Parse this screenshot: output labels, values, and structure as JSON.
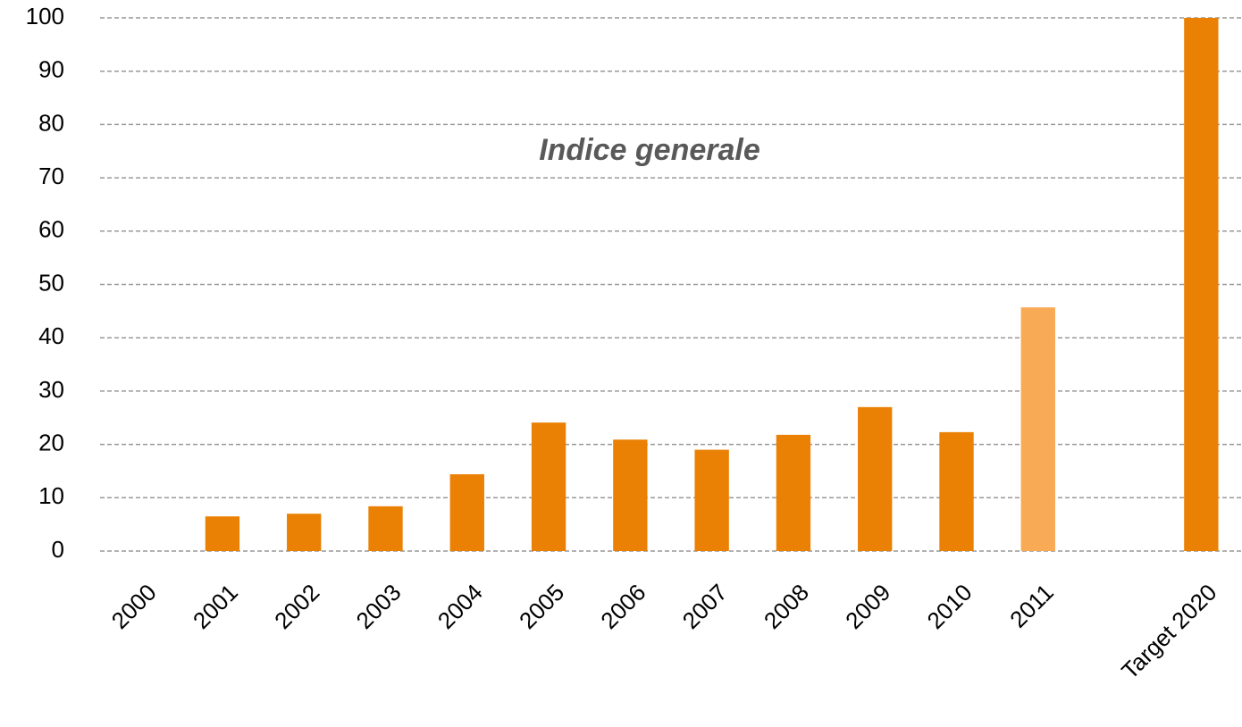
{
  "chart_data": {
    "type": "bar",
    "title": "Indice generale",
    "categories": [
      "2000",
      "2001",
      "2002",
      "2003",
      "2004",
      "2005",
      "2006",
      "2007",
      "2008",
      "2009",
      "2010",
      "2011",
      null,
      "Target 2020"
    ],
    "values": [
      0,
      6.5,
      7,
      8.4,
      14.4,
      24.1,
      20.9,
      19,
      21.8,
      27,
      22.3,
      45.7,
      null,
      100
    ],
    "colors": [
      "#ea8004",
      "#ea8004",
      "#ea8004",
      "#ea8004",
      "#ea8004",
      "#ea8004",
      "#ea8004",
      "#ea8004",
      "#ea8004",
      "#ea8004",
      "#ea8004",
      "#f9aa55",
      null,
      "#ea8004"
    ],
    "ylim": [
      0,
      100
    ],
    "yticks": [
      0,
      10,
      20,
      30,
      40,
      50,
      60,
      70,
      80,
      90,
      100
    ],
    "grid": true
  }
}
